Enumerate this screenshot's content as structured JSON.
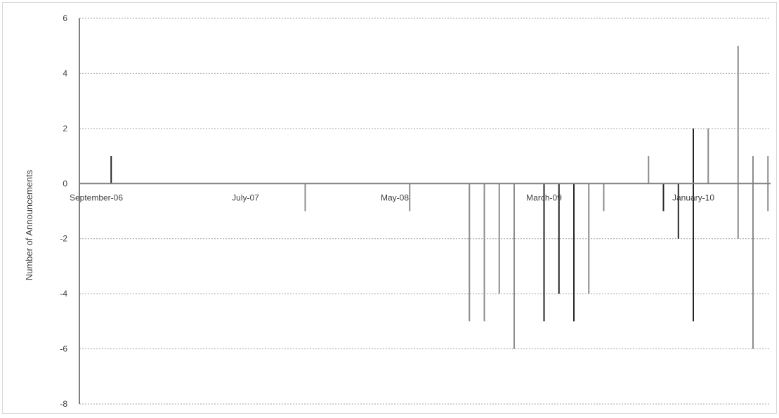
{
  "chart_data": {
    "type": "bar",
    "title": "",
    "xlabel": "",
    "ylabel": "Number of Announcements",
    "ylim": [
      -8,
      6
    ],
    "yticks": [
      6,
      4,
      2,
      0,
      -2,
      -4,
      -6,
      -8
    ],
    "grid": true,
    "legend": "none",
    "colors": {
      "gridline": "#a6a6a6",
      "axis": "#808080",
      "dark_bar": "#262626",
      "gray_bar": "#8c8c8c",
      "text": "#404040"
    },
    "x_axis_labels": [
      {
        "label": "September-06",
        "month": "2006-09"
      },
      {
        "label": "July-07",
        "month": "2007-07"
      },
      {
        "label": "May-08",
        "month": "2008-05"
      },
      {
        "label": "March-09",
        "month": "2009-03"
      },
      {
        "label": "January-10",
        "month": "2010-01"
      }
    ],
    "series": [
      {
        "color": "#262626",
        "points": [
          {
            "month": "2006-10",
            "low": 0,
            "high": 1
          },
          {
            "month": "2009-03",
            "low": -5,
            "high": 0
          },
          {
            "month": "2009-04",
            "low": -4,
            "high": 0
          },
          {
            "month": "2009-05",
            "low": -5,
            "high": 0
          },
          {
            "month": "2009-11",
            "low": -1,
            "high": 0
          },
          {
            "month": "2009-12",
            "low": -2,
            "high": 0
          },
          {
            "month": "2010-01",
            "low": -5,
            "high": 2
          }
        ]
      },
      {
        "color": "#8c8c8c",
        "points": [
          {
            "month": "2007-11",
            "low": -1,
            "high": 0
          },
          {
            "month": "2008-06",
            "low": -1,
            "high": 0
          },
          {
            "month": "2008-10",
            "low": -5,
            "high": 0
          },
          {
            "month": "2008-11",
            "low": -5,
            "high": 0
          },
          {
            "month": "2008-12",
            "low": -4,
            "high": 0
          },
          {
            "month": "2009-01",
            "low": -6,
            "high": 0
          },
          {
            "month": "2009-06",
            "low": -4,
            "high": 0
          },
          {
            "month": "2009-07",
            "low": -1,
            "high": 0
          },
          {
            "month": "2009-10",
            "low": 0,
            "high": 1
          },
          {
            "month": "2010-02",
            "low": 0,
            "high": 2
          },
          {
            "month": "2010-04",
            "low": -2,
            "high": 5
          },
          {
            "month": "2010-05",
            "low": -6,
            "high": 1
          },
          {
            "month": "2010-06",
            "low": -1,
            "high": 1
          }
        ]
      }
    ]
  }
}
